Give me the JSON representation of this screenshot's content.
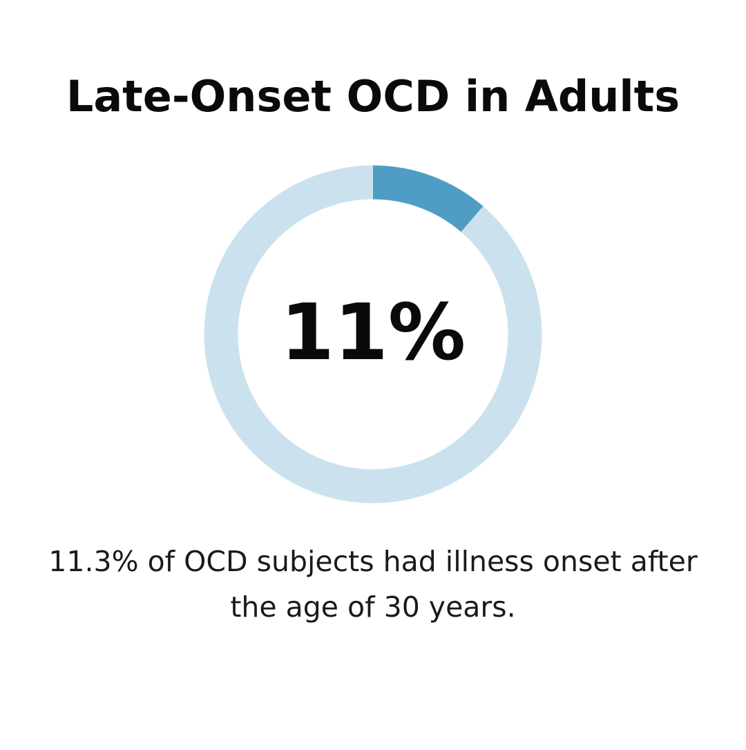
{
  "title": "Late-Onset OCD in Adults",
  "chart_data": {
    "type": "pie",
    "subtype": "donut",
    "value_percent": 11.3,
    "center_label": "11%",
    "colors": {
      "value": "#4f9dc4",
      "remainder": "#cbe2ee"
    }
  },
  "caption": "11.3% of OCD subjects had illness onset after the age of 30 years."
}
